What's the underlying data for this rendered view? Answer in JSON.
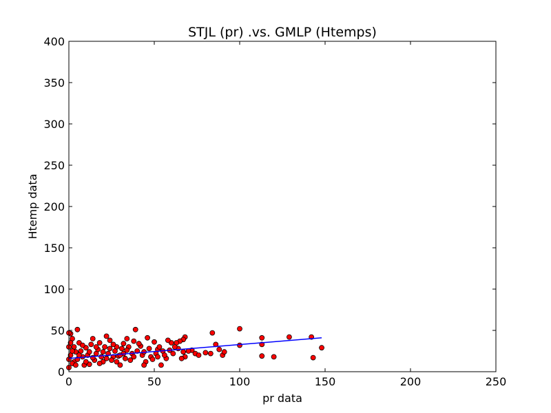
{
  "chart_data": {
    "type": "scatter",
    "title": "STJL (pr) .vs. GMLP (Htemps)",
    "x_label": "pr data",
    "y_label": "Htemp data",
    "xlim": [
      0,
      250
    ],
    "xticks": [
      0,
      50,
      100,
      150,
      200,
      250
    ],
    "ylim": [
      0,
      400
    ],
    "yticks": [
      0,
      50,
      100,
      150,
      200,
      250,
      300,
      350,
      400
    ],
    "grid": false,
    "series": [
      {
        "type": "scatter",
        "color": "#ff0000",
        "x": [
          100,
          129,
          142,
          148,
          143,
          120,
          113,
          113,
          113,
          100,
          84,
          86,
          88,
          90,
          91,
          83,
          80,
          74,
          72,
          68,
          67,
          68,
          65,
          66,
          63,
          60,
          58,
          57,
          55,
          54,
          52,
          50,
          48,
          46,
          45,
          44,
          42,
          39,
          38,
          36,
          34,
          32,
          30,
          28,
          26,
          24,
          22,
          20,
          18,
          16,
          14,
          12,
          10,
          8,
          6,
          5,
          4,
          3,
          2,
          1,
          0,
          0,
          1,
          2,
          3,
          5,
          7,
          9,
          11,
          13,
          15,
          17,
          19,
          21,
          23,
          25,
          27,
          29,
          31,
          33,
          35,
          37,
          40,
          43,
          47,
          49,
          51,
          53,
          56,
          59,
          61,
          64,
          70,
          76,
          0,
          0,
          1,
          2,
          4,
          6,
          8,
          10,
          12,
          14,
          16,
          18,
          20,
          22,
          24,
          26,
          28,
          30,
          32,
          34,
          38,
          41,
          44,
          52,
          62,
          67
        ],
        "values": [
          52,
          42,
          42,
          29,
          17,
          18,
          19,
          33,
          41,
          32,
          47,
          33,
          27,
          20,
          24,
          22,
          23,
          22,
          26,
          42,
          39,
          18,
          37,
          16,
          35,
          35,
          38,
          16,
          25,
          8,
          27,
          36,
          18,
          41,
          12,
          8,
          31,
          51,
          37,
          14,
          40,
          22,
          8,
          30,
          18,
          38,
          43,
          12,
          35,
          22,
          40,
          9,
          29,
          18,
          35,
          51,
          24,
          12,
          40,
          46,
          47,
          5,
          20,
          10,
          30,
          15,
          25,
          8,
          20,
          33,
          14,
          27,
          18,
          30,
          22,
          14,
          25,
          19,
          28,
          16,
          30,
          22,
          25,
          20,
          28,
          15,
          22,
          30,
          20,
          26,
          22,
          28,
          25,
          20,
          30,
          15,
          35,
          25,
          8,
          20,
          32,
          12,
          24,
          17,
          30,
          10,
          24,
          16,
          28,
          33,
          12,
          20,
          34,
          26,
          18,
          34,
          24,
          18,
          30,
          24
        ]
      },
      {
        "type": "line",
        "color": "#0000ff",
        "x": [
          0,
          148
        ],
        "values": [
          16,
          41
        ]
      }
    ]
  }
}
